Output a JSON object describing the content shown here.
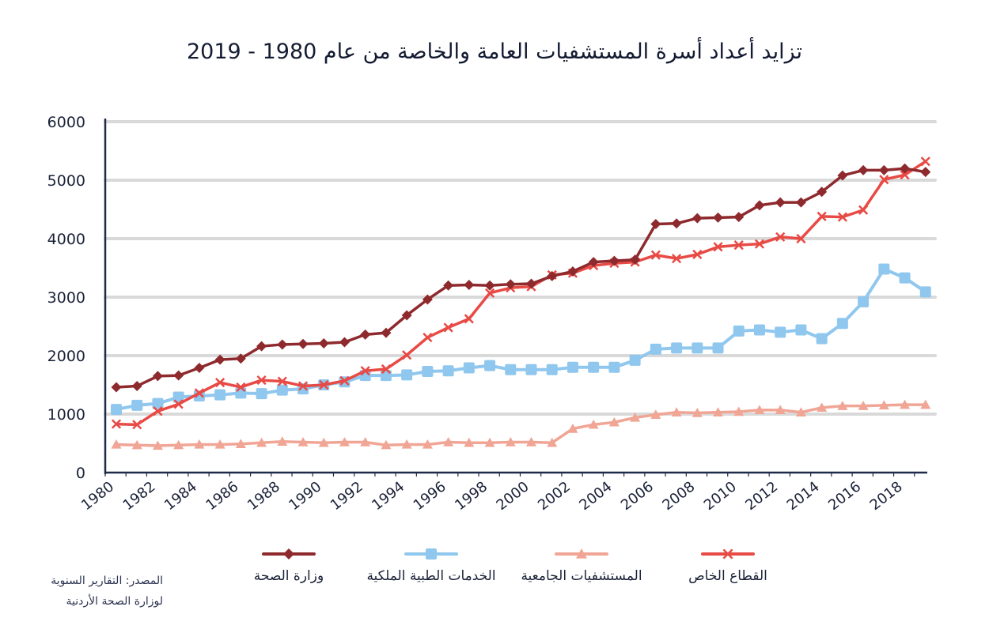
{
  "title": "تزايد أعداد أسرة المستشفيات العامة والخاصة من عام 1980 - 2019",
  "source": {
    "line1": "المصدر: التقارير السنوية",
    "line2": "لوزارة الصحة الأردنية"
  },
  "legend": [
    {
      "label": "وزارة الصحة",
      "color": "#8e2a2e",
      "marker": "diamond"
    },
    {
      "label": "الخدمات الطبية الملكية",
      "color": "#8fc7ee",
      "marker": "square"
    },
    {
      "label": "المستشفيات الجامعية",
      "color": "#f0a595",
      "marker": "triangle"
    },
    {
      "label": "القطاع الخاص",
      "color": "#e84a45",
      "marker": "x"
    }
  ],
  "chart_data": {
    "type": "line",
    "x": [
      1980,
      1981,
      1982,
      1983,
      1984,
      1985,
      1986,
      1987,
      1988,
      1989,
      1990,
      1991,
      1992,
      1993,
      1994,
      1995,
      1996,
      1997,
      1998,
      1999,
      2000,
      2001,
      2002,
      2003,
      2004,
      2005,
      2006,
      2007,
      2008,
      2009,
      2010,
      2011,
      2012,
      2013,
      2014,
      2015,
      2016,
      2017,
      2018,
      2019
    ],
    "x_ticks": [
      "1980",
      "1982",
      "1984",
      "1986",
      "1988",
      "1990",
      "1992",
      "1994",
      "1996",
      "1998",
      "2000",
      "2002",
      "2004",
      "2006",
      "2008",
      "2010",
      "2012",
      "2014",
      "2016",
      "2018"
    ],
    "y_ticks": [
      "0",
      "1000",
      "2000",
      "3000",
      "4000",
      "5000",
      "6000"
    ],
    "ylim": [
      0,
      6000
    ],
    "grid": true,
    "legend_position": "bottom",
    "series": [
      {
        "name": "وزارة الصحة",
        "color": "#8e2a2e",
        "marker": "diamond",
        "values": [
          1460,
          1480,
          1650,
          1660,
          1790,
          1930,
          1950,
          2160,
          2190,
          2200,
          2210,
          2230,
          2360,
          2390,
          2690,
          2960,
          3200,
          3210,
          3200,
          3220,
          3230,
          3360,
          3440,
          3600,
          3620,
          3640,
          4250,
          4260,
          4350,
          4360,
          4370,
          4570,
          4620,
          4620,
          4800,
          5080,
          5170,
          5170,
          5200,
          5140
        ]
      },
      {
        "name": "الخدمات الطبية الملكية",
        "color": "#8fc7ee",
        "marker": "square",
        "values": [
          1080,
          1150,
          1180,
          1290,
          1310,
          1330,
          1360,
          1350,
          1410,
          1430,
          1500,
          1550,
          1660,
          1660,
          1670,
          1730,
          1740,
          1790,
          1830,
          1760,
          1760,
          1760,
          1800,
          1800,
          1800,
          1920,
          2110,
          2130,
          2130,
          2130,
          2420,
          2440,
          2400,
          2440,
          2290,
          2550,
          2920,
          3480,
          3330,
          3090
        ]
      },
      {
        "name": "المستشفيات الجامعية",
        "color": "#f0a595",
        "marker": "triangle",
        "values": [
          480,
          470,
          460,
          470,
          480,
          480,
          490,
          510,
          530,
          520,
          510,
          520,
          520,
          470,
          480,
          480,
          520,
          510,
          510,
          520,
          520,
          510,
          750,
          820,
          860,
          940,
          990,
          1030,
          1020,
          1030,
          1040,
          1070,
          1070,
          1030,
          1110,
          1140,
          1140,
          1150,
          1160,
          1160
        ]
      },
      {
        "name": "القطاع الخاص",
        "color": "#e84a45",
        "marker": "x",
        "values": [
          830,
          820,
          1050,
          1170,
          1360,
          1540,
          1460,
          1580,
          1560,
          1480,
          1500,
          1570,
          1740,
          1770,
          2010,
          2310,
          2480,
          2630,
          3070,
          3160,
          3180,
          3380,
          3410,
          3540,
          3580,
          3600,
          3720,
          3660,
          3730,
          3860,
          3890,
          3910,
          4030,
          4000,
          4380,
          4370,
          4490,
          5010,
          5090,
          5320
        ]
      }
    ]
  }
}
